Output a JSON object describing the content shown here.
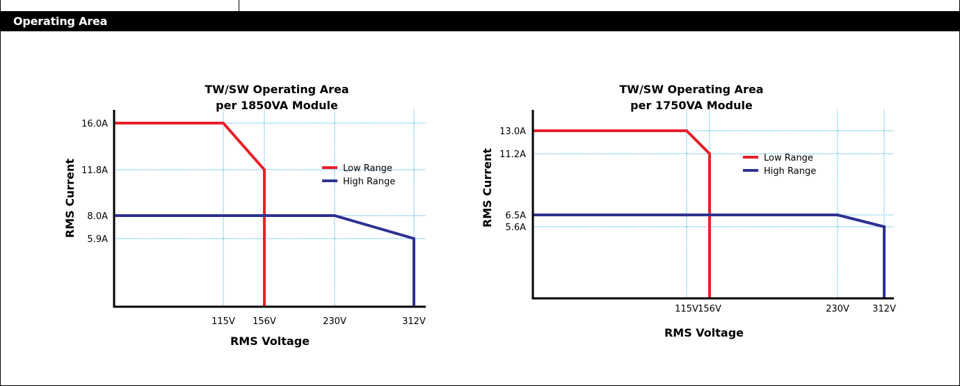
{
  "section": {
    "title": "Operating Area"
  },
  "chart_data": [
    {
      "type": "line",
      "title": "TW/SW Operating Area",
      "subtitle": "per 1850VA Module",
      "xlabel": "RMS Voltage",
      "ylabel": "RMS Current",
      "x_scale": "categorical-ticks",
      "x_ticks": [
        {
          "label": "115V",
          "value": 115
        },
        {
          "label": "156V",
          "value": 156
        },
        {
          "label": "230V",
          "value": 230
        },
        {
          "label": "312V",
          "value": 312
        }
      ],
      "y_ticks": [
        {
          "label": "16.0A",
          "value": 16.0
        },
        {
          "label": "11.8A",
          "value": 11.8
        },
        {
          "label": "8.0A",
          "value": 8.0
        },
        {
          "label": "5.9A",
          "value": 5.9
        }
      ],
      "series": [
        {
          "name": "Low Range",
          "color": "#e8202a",
          "points": [
            [
              0,
              16.0
            ],
            [
              115,
              16.0
            ],
            [
              156,
              11.8
            ],
            [
              156,
              0
            ]
          ]
        },
        {
          "name": "High Range",
          "color": "#2e3192",
          "points": [
            [
              0,
              8.0
            ],
            [
              230,
              8.0
            ],
            [
              312,
              5.9
            ],
            [
              312,
              0
            ]
          ]
        }
      ],
      "guide_color": "#27a9e1",
      "grid": false,
      "legend_position": "right"
    },
    {
      "type": "line",
      "title": "TW/SW Operating Area",
      "subtitle": "per 1750VA Module",
      "xlabel": "RMS Voltage",
      "ylabel": "RMS Current",
      "x_scale": "categorical-ticks",
      "x_ticks": [
        {
          "label": "115V",
          "value": 115
        },
        {
          "label": "156V",
          "value": 156
        },
        {
          "label": "230V",
          "value": 230
        },
        {
          "label": "312V",
          "value": 312
        }
      ],
      "y_ticks": [
        {
          "label": "13.0A",
          "value": 13.0
        },
        {
          "label": "11.2A",
          "value": 11.2
        },
        {
          "label": "6.5A",
          "value": 6.5
        },
        {
          "label": "5.6A",
          "value": 5.6
        }
      ],
      "series": [
        {
          "name": "Low Range",
          "color": "#e8202a",
          "points": [
            [
              0,
              13.0
            ],
            [
              115,
              13.0
            ],
            [
              156,
              11.2
            ],
            [
              156,
              0
            ]
          ]
        },
        {
          "name": "High Range",
          "color": "#2e3192",
          "points": [
            [
              0,
              6.5
            ],
            [
              230,
              6.5
            ],
            [
              312,
              5.6
            ],
            [
              312,
              0
            ]
          ]
        }
      ],
      "guide_color": "#27a9e1",
      "grid": false,
      "legend_position": "right"
    }
  ]
}
